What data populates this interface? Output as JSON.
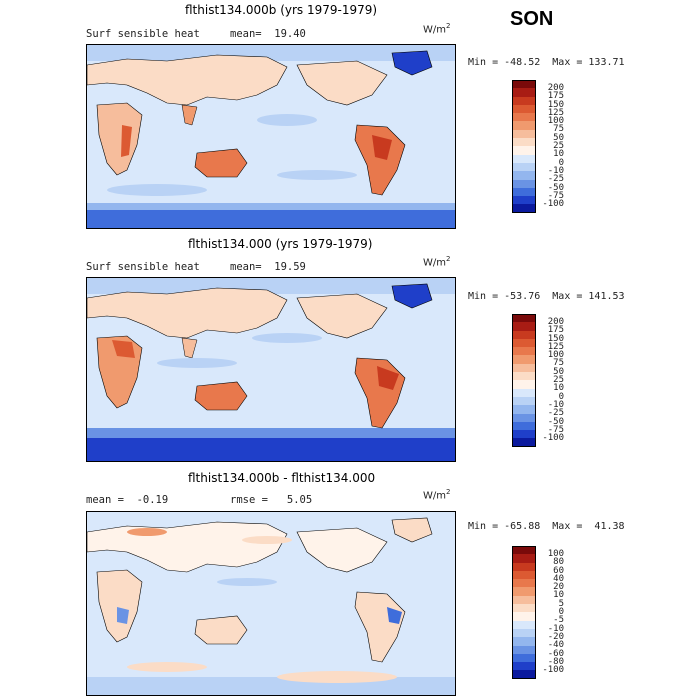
{
  "season": "SON",
  "units": {
    "base": "W/m",
    "exp": "2"
  },
  "panels": [
    {
      "title": "flthist134.000b (yrs 1979-1979)",
      "left_text": "Surf sensible heat",
      "stat_text": "mean=  19.40",
      "minmax": "Min = -48.52  Max = 133.71",
      "colorbar_labels": [
        "200",
        "175",
        "150",
        "125",
        "100",
        "75",
        "50",
        "25",
        "10",
        "0",
        "-10",
        "-25",
        "-50",
        "-75",
        "-100"
      ]
    },
    {
      "title": "flthist134.000 (yrs 1979-1979)",
      "left_text": "Surf sensible heat",
      "stat_text": "mean=  19.59",
      "minmax": "Min = -53.76  Max = 141.53",
      "colorbar_labels": [
        "200",
        "175",
        "150",
        "125",
        "100",
        "75",
        "50",
        "25",
        "10",
        "0",
        "-10",
        "-25",
        "-50",
        "-75",
        "-100"
      ]
    },
    {
      "title": "flthist134.000b - flthist134.000",
      "left_text": "mean =  -0.19",
      "stat_text": "rmse =   5.05",
      "minmax": "Min = -65.88  Max =  41.38",
      "colorbar_labels": [
        "100",
        "80",
        "60",
        "40",
        "20",
        "10",
        "5",
        "0",
        "-5",
        "-10",
        "-20",
        "-40",
        "-60",
        "-80",
        "-100"
      ]
    }
  ],
  "colors": {
    "scale": [
      "#7a0a0a",
      "#a81c14",
      "#c83a1f",
      "#dc5a32",
      "#e8784c",
      "#f09a6e",
      "#f6bd9c",
      "#fbdcc6",
      "#fff3ea",
      "#d9e8fb",
      "#b9d2f5",
      "#93b6ee",
      "#6a93e4",
      "#3f6ddb",
      "#1f3fc9",
      "#0b1a9e"
    ],
    "ocean": "#d9e8fb",
    "land_warm": "#f6bd9c",
    "land_hot": "#e8784c",
    "cold": "#6a93e4",
    "very_cold": "#1f3fc9"
  }
}
